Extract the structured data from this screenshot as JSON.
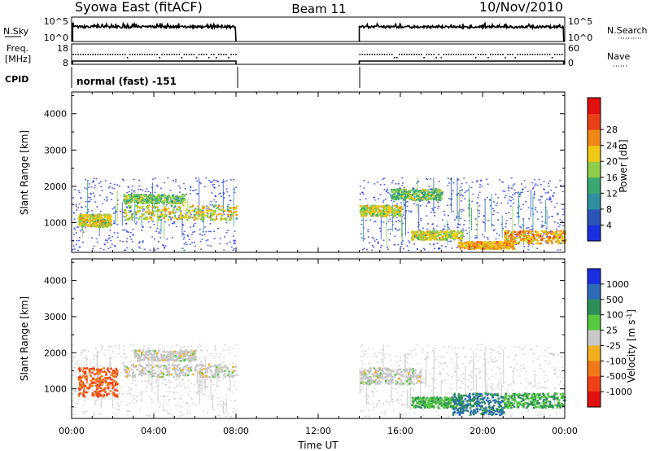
{
  "header": {
    "radar": "Syowa East (fitACF)",
    "beam": "Beam 11",
    "date": "10/Nov/2010"
  },
  "status_panels": {
    "nsky_label": "N.Sky",
    "nsky_top": "10^5",
    "nsky_bottom": "10^0",
    "nsearch_label": "N.Search",
    "nsearch_top": "10^5",
    "nsearch_bottom": "10^0",
    "freq_label_1": "Freq.",
    "freq_label_2": "[MHz]",
    "freq_top": "18",
    "freq_bottom": "8",
    "nave_label": "Nave",
    "nave_top": "60",
    "nave_bottom": "0",
    "cpid_label": "CPID",
    "cpid_value": "normal (fast) -151"
  },
  "chart_data": [
    {
      "type": "heatmap",
      "name": "power",
      "xlabel": "",
      "ylabel": "Slant Range [km]",
      "x_ticks": [
        "00:00",
        "04:00",
        "08:00",
        "12:00",
        "16:00",
        "20:00",
        "00:00"
      ],
      "x_range_hours": [
        0,
        24
      ],
      "y_range_km": [
        180,
        4600
      ],
      "y_ticks": [
        1000,
        2000,
        3000,
        4000
      ],
      "data_gap_hours": [
        8,
        14
      ],
      "colorbar": {
        "label": "Power [dB]",
        "ticks": [
          "4",
          "8",
          "12",
          "16",
          "20",
          "24",
          "28"
        ],
        "colors": [
          "#1a2fe0",
          "#2b55b8",
          "#2f8fa0",
          "#3aa870",
          "#8fce4a",
          "#f0c818",
          "#f08818",
          "#e84018",
          "#e01010"
        ]
      },
      "bands": [
        {
          "hours": [
            0.3,
            1.9
          ],
          "km": [
            900,
            1250
          ],
          "power_db": 20
        },
        {
          "hours": [
            2.5,
            8.0
          ],
          "km": [
            1100,
            1500
          ],
          "power_db": 20
        },
        {
          "hours": [
            2.5,
            5.5
          ],
          "km": [
            1550,
            1800
          ],
          "power_db": 16
        },
        {
          "hours": [
            14.0,
            16.0
          ],
          "km": [
            1200,
            1500
          ],
          "power_db": 20
        },
        {
          "hours": [
            15.5,
            18.0
          ],
          "km": [
            1650,
            1950
          ],
          "power_db": 16
        },
        {
          "hours": [
            16.5,
            19.0
          ],
          "km": [
            550,
            800
          ],
          "power_db": 20
        },
        {
          "hours": [
            18.8,
            21.5
          ],
          "km": [
            300,
            500
          ],
          "power_db": 24
        },
        {
          "hours": [
            21.0,
            24.0
          ],
          "km": [
            450,
            800
          ],
          "power_db": 24
        }
      ]
    },
    {
      "type": "heatmap",
      "name": "velocity",
      "xlabel": "Time UT",
      "ylabel": "Slant Range [km]",
      "x_ticks": [
        "00:00",
        "04:00",
        "08:00",
        "12:00",
        "16:00",
        "20:00",
        "00:00"
      ],
      "x_range_hours": [
        0,
        24
      ],
      "y_range_km": [
        180,
        4600
      ],
      "y_ticks": [
        1000,
        2000,
        3000,
        4000
      ],
      "data_gap_hours": [
        8,
        14
      ],
      "colorbar": {
        "label": "Velocity [m s^-1]",
        "ticks": [
          "1000",
          "500",
          "100",
          "25",
          "-25",
          "-100",
          "-500",
          "-1000"
        ],
        "colors": [
          "#1a2fe0",
          "#2e6cb8",
          "#2f8f5a",
          "#58c840",
          "#c8c8c8",
          "#f0b020",
          "#f07818",
          "#f04018",
          "#e01010"
        ]
      },
      "bands": [
        {
          "hours": [
            0.3,
            2.2
          ],
          "km": [
            800,
            1600
          ],
          "velocity_ms": -500
        },
        {
          "hours": [
            2.5,
            8.0
          ],
          "km": [
            1350,
            1700
          ],
          "velocity_ms": 0
        },
        {
          "hours": [
            3.0,
            6.0
          ],
          "km": [
            1800,
            2100
          ],
          "velocity_ms": 0
        },
        {
          "hours": [
            14.0,
            17.0
          ],
          "km": [
            1150,
            1600
          ],
          "velocity_ms": 0
        },
        {
          "hours": [
            16.5,
            19.0
          ],
          "km": [
            500,
            800
          ],
          "velocity_ms": 100
        },
        {
          "hours": [
            18.5,
            21.0
          ],
          "km": [
            300,
            900
          ],
          "velocity_ms": 500
        },
        {
          "hours": [
            21.0,
            24.0
          ],
          "km": [
            500,
            900
          ],
          "velocity_ms": 100
        }
      ]
    }
  ]
}
